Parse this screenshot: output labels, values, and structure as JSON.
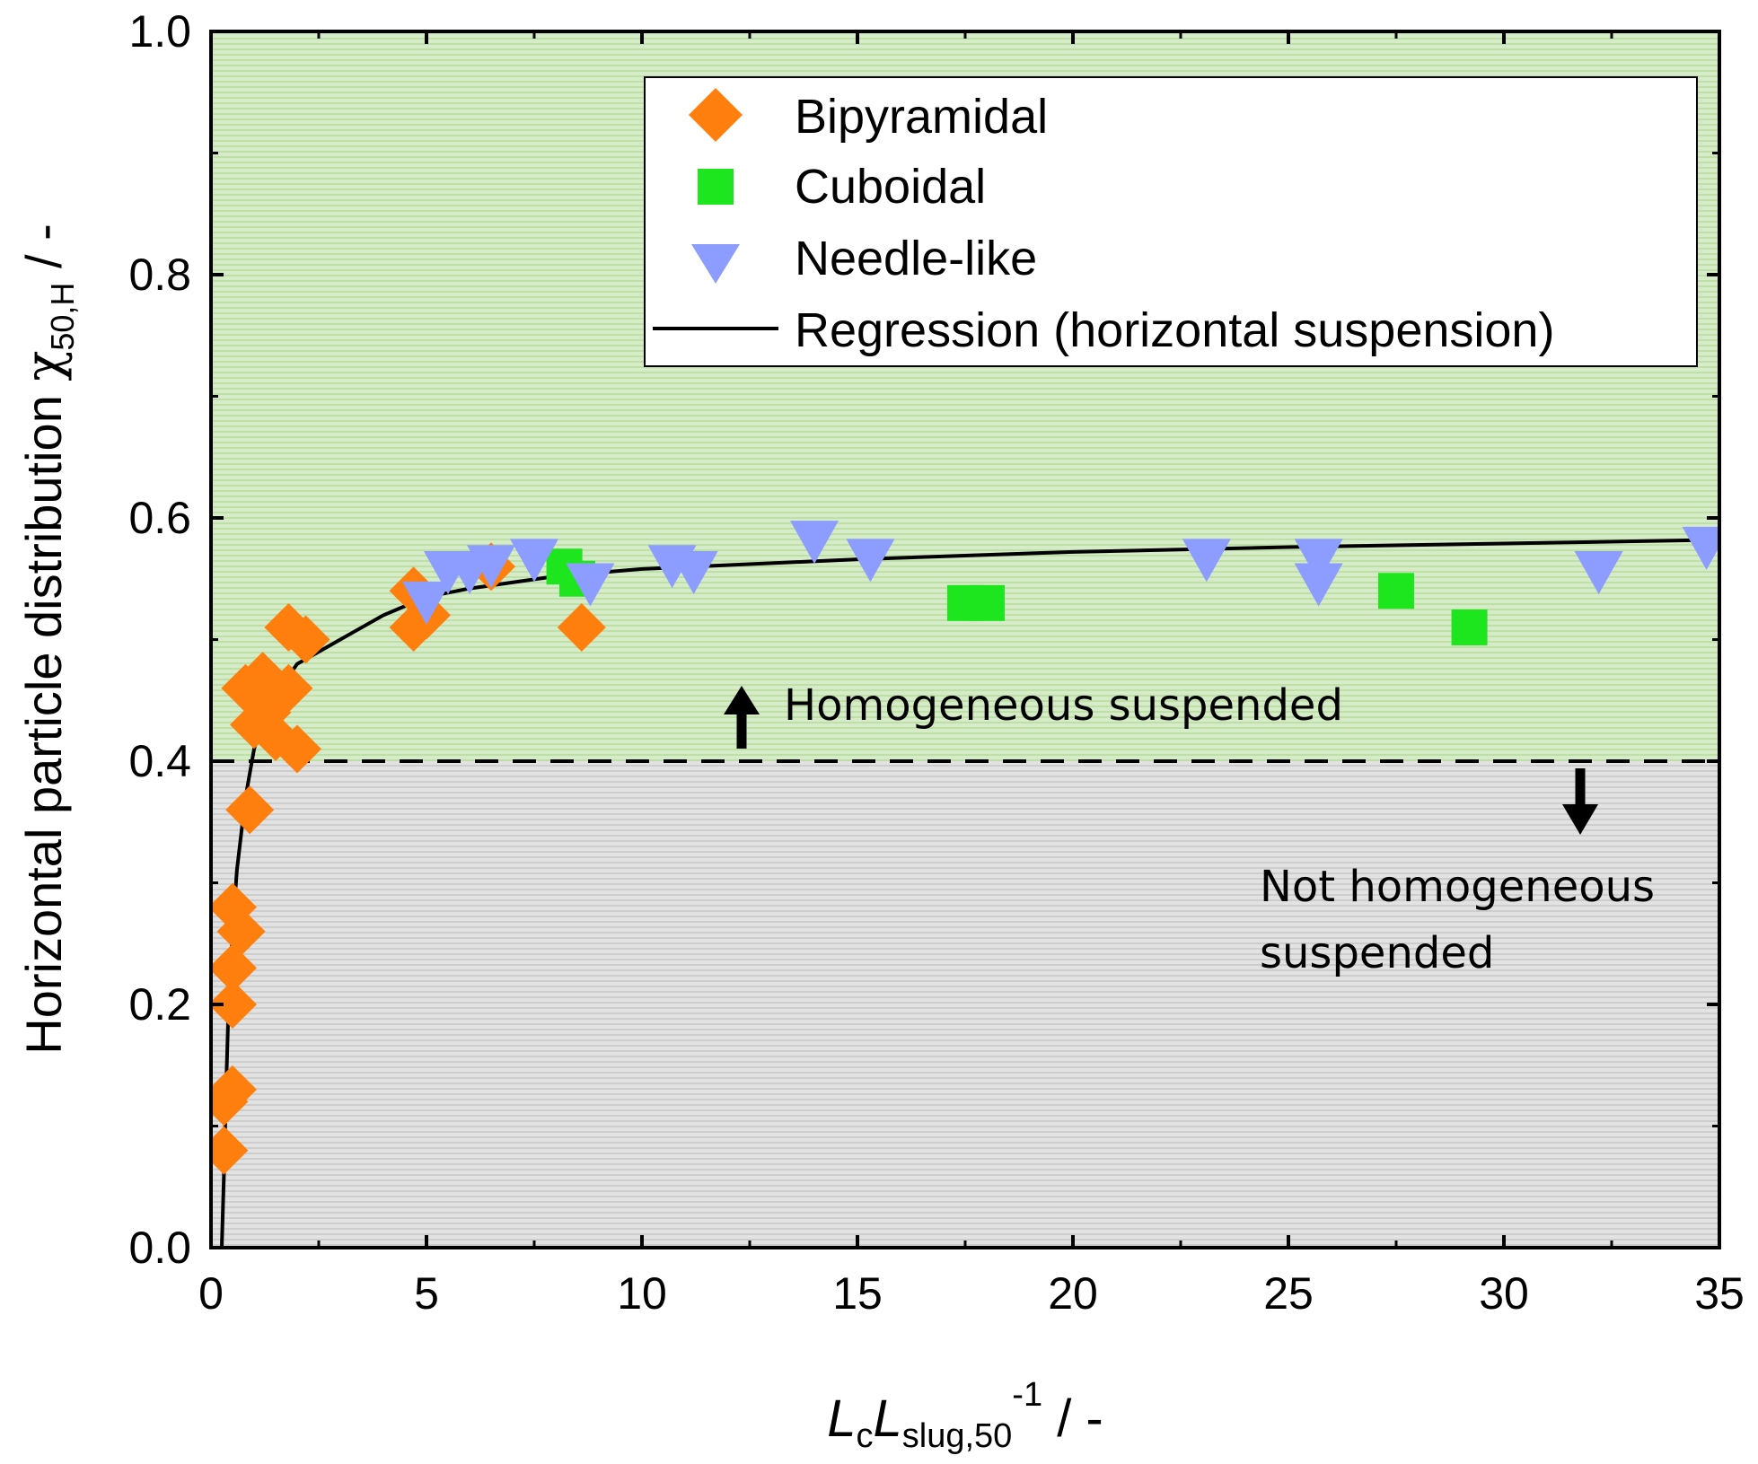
{
  "chart_data": {
    "type": "scatter",
    "xlabel": {
      "main": "L",
      "sub1": "c",
      "main2": "L",
      "sub2": "slug,50",
      "sup": "-1",
      "suffix": " / -"
    },
    "ylabel": {
      "main": "Horizontal particle distribution ",
      "greek": "χ",
      "sub": "50,H",
      "suffix": " / -"
    },
    "xlim": [
      0,
      35
    ],
    "ylim": [
      0,
      1.0
    ],
    "xticks": [
      "0",
      "5",
      "10",
      "15",
      "20",
      "25",
      "30",
      "35"
    ],
    "xtick_values": [
      0,
      5,
      10,
      15,
      20,
      25,
      30,
      35
    ],
    "yticks": [
      "0.0",
      "0.2",
      "0.4",
      "0.6",
      "0.8",
      "1.0"
    ],
    "ytick_values": [
      0.0,
      0.2,
      0.4,
      0.6,
      0.8,
      1.0
    ],
    "threshold": 0.4,
    "colors": {
      "bipyramidal": "#FF7F0E",
      "cuboidal": "#1EE61E",
      "needle": "#8C9CFF",
      "green_region": "#CFE8BF",
      "gray_region": "#DADADA"
    },
    "series": [
      {
        "name": "Bipyramidal",
        "marker": "diamond",
        "x": [
          0.3,
          0.3,
          0.5,
          0.5,
          0.5,
          0.5,
          0.7,
          0.8,
          0.9,
          1.0,
          1.1,
          1.2,
          1.3,
          1.5,
          1.8,
          1.8,
          2.0,
          2.2,
          4.7,
          4.7,
          5.0,
          6.5,
          8.6
        ],
        "y": [
          0.08,
          0.12,
          0.13,
          0.2,
          0.23,
          0.28,
          0.26,
          0.46,
          0.36,
          0.43,
          0.45,
          0.47,
          0.44,
          0.42,
          0.51,
          0.46,
          0.41,
          0.5,
          0.54,
          0.51,
          0.52,
          0.56,
          0.51
        ]
      },
      {
        "name": "Cuboidal",
        "marker": "square",
        "x": [
          8.2,
          8.5,
          17.5,
          18.0,
          27.5,
          29.2
        ],
        "y": [
          0.56,
          0.55,
          0.53,
          0.53,
          0.54,
          0.51
        ]
      },
      {
        "name": "Needle-like",
        "marker": "triangle-down",
        "x": [
          5.0,
          5.5,
          6.0,
          6.5,
          7.5,
          8.8,
          10.7,
          11.2,
          14.0,
          15.3,
          23.1,
          25.7,
          25.7,
          32.2,
          34.7
        ],
        "y": [
          0.53,
          0.555,
          0.555,
          0.56,
          0.565,
          0.545,
          0.56,
          0.555,
          0.58,
          0.565,
          0.565,
          0.565,
          0.545,
          0.555,
          0.575
        ]
      },
      {
        "name": "Regression (horizontal suspension)",
        "type": "line",
        "x": [
          0.25,
          0.3,
          0.35,
          0.4,
          0.5,
          0.6,
          0.7,
          0.8,
          1.0,
          1.2,
          1.5,
          2.0,
          2.5,
          3.0,
          4.0,
          5.0,
          6.0,
          8.0,
          10.0,
          15.0,
          20.0,
          25.0,
          30.0,
          35.0
        ],
        "y": [
          0.0,
          0.06,
          0.13,
          0.19,
          0.26,
          0.31,
          0.34,
          0.37,
          0.41,
          0.435,
          0.455,
          0.48,
          0.49,
          0.5,
          0.52,
          0.535,
          0.542,
          0.552,
          0.558,
          0.566,
          0.572,
          0.576,
          0.579,
          0.582
        ]
      }
    ],
    "legend": {
      "position": "top-right",
      "entries": [
        "Bipyramidal",
        "Cuboidal",
        "Needle-like",
        "Regression (horizontal suspension)"
      ]
    },
    "annotations": {
      "above": "Homogeneous suspended",
      "below_line1": "Not homogeneous",
      "below_line2": "suspended"
    }
  }
}
